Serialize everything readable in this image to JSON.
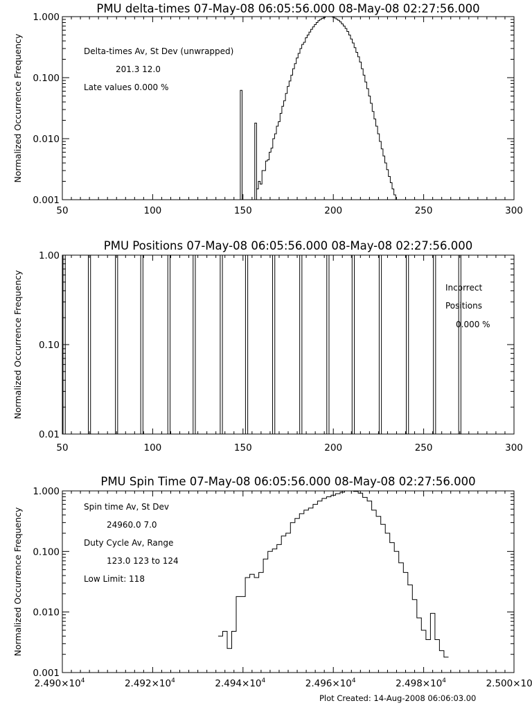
{
  "footer": "Plot Created: 14-Aug-2008 06:06:03.00",
  "chart_data": [
    {
      "type": "line",
      "step": true,
      "title": "PMU delta-times 07-May-08 06:05:56.000 08-May-08 02:27:56.000",
      "ylabel": "Normalized Occurrence Frequency",
      "xlabel": "",
      "ylog": true,
      "xlim": [
        50,
        300
      ],
      "ylim": [
        0.001,
        1.0
      ],
      "xticks": [
        "50",
        "100",
        "150",
        "200",
        "250",
        "300"
      ],
      "yticks": [
        "0.001",
        "0.010",
        "0.100",
        "1.000"
      ],
      "annotations": [
        "Delta-times Av, St Dev (unwrapped)",
        "201.3    12.0",
        "Late values    0.000 %"
      ],
      "spikes": [
        {
          "x": 149,
          "y": 0.062
        },
        {
          "x": 157,
          "y": 0.018
        }
      ],
      "x": [
        158,
        159,
        160,
        161,
        162,
        163,
        164,
        165,
        166,
        167,
        168,
        169,
        170,
        171,
        172,
        173,
        174,
        175,
        176,
        177,
        178,
        179,
        180,
        181,
        182,
        183,
        184,
        185,
        186,
        187,
        188,
        189,
        190,
        191,
        192,
        193,
        194,
        195,
        196,
        197,
        198,
        199,
        200,
        201,
        202,
        203,
        204,
        205,
        206,
        207,
        208,
        209,
        210,
        211,
        212,
        213,
        214,
        215,
        216,
        217,
        218,
        219,
        220,
        221,
        222,
        223,
        224,
        225,
        226,
        227,
        228,
        229,
        230,
        231,
        232,
        233,
        234,
        235,
        236,
        237,
        238,
        239
      ],
      "y": [
        0.0015,
        0.002,
        0.0018,
        0.003,
        0.003,
        0.0043,
        0.0045,
        0.006,
        0.007,
        0.01,
        0.012,
        0.016,
        0.019,
        0.026,
        0.034,
        0.042,
        0.055,
        0.072,
        0.088,
        0.11,
        0.14,
        0.17,
        0.21,
        0.25,
        0.3,
        0.35,
        0.38,
        0.45,
        0.5,
        0.56,
        0.62,
        0.68,
        0.74,
        0.8,
        0.86,
        0.9,
        0.94,
        0.97,
        1.0,
        1.0,
        1.0,
        1.0,
        0.98,
        0.95,
        0.91,
        0.87,
        0.82,
        0.76,
        0.7,
        0.64,
        0.57,
        0.5,
        0.43,
        0.37,
        0.31,
        0.26,
        0.22,
        0.18,
        0.14,
        0.11,
        0.085,
        0.066,
        0.05,
        0.038,
        0.028,
        0.021,
        0.016,
        0.012,
        0.009,
        0.0068,
        0.0052,
        0.004,
        0.0031,
        0.0024,
        0.0019,
        0.0015,
        0.0012,
        0.001,
        0.001,
        0.001,
        0.001,
        0.001
      ]
    },
    {
      "type": "bar",
      "title": "PMU Positions 07-May-08 06:05:56.000 08-May-08 02:27:56.000",
      "ylabel": "Normalized Occurrence Frequency",
      "xlabel": "",
      "ylog": true,
      "xlim": [
        50,
        300
      ],
      "ylim": [
        0.01,
        1.0
      ],
      "xticks": [
        "50",
        "100",
        "150",
        "200",
        "250",
        "300"
      ],
      "yticks": [
        "0.01",
        "0.10",
        "1.00"
      ],
      "annotations": [
        "Incorrect",
        "Positions",
        "0.000 %"
      ],
      "x": [
        51,
        65,
        80,
        94,
        109,
        123,
        138,
        152,
        167,
        182,
        197,
        211,
        226,
        241,
        256,
        270
      ],
      "values": [
        1.0,
        1.0,
        1.0,
        1.0,
        1.0,
        1.0,
        1.0,
        1.0,
        1.0,
        1.0,
        1.0,
        1.0,
        1.0,
        1.0,
        1.0,
        1.0
      ]
    },
    {
      "type": "line",
      "step": true,
      "title": "PMU Spin Time 07-May-08 06:05:56.000 08-May-08 02:27:56.000",
      "ylabel": "Normalized Occurrence Frequency",
      "xlabel": "",
      "ylog": true,
      "xlim": [
        24900,
        25000
      ],
      "ylim": [
        0.001,
        1.0
      ],
      "xticks": [
        "2.490×10",
        "2.492×10",
        "2.494×10",
        "2.496×10",
        "2.498×10",
        "2.500×10"
      ],
      "xtick_exponent": "4",
      "yticks": [
        "0.001",
        "0.010",
        "0.100",
        "1.000"
      ],
      "annotations": [
        "Spin time Av, St Dev",
        "24960.0        7.0",
        "Duty Cycle Av, Range",
        "123.0  123 to 124",
        "Low Limit: 118"
      ],
      "x": [
        24935,
        24936,
        24937,
        24938,
        24939,
        24940,
        24941,
        24942,
        24943,
        24944,
        24945,
        24946,
        24947,
        24948,
        24949,
        24950,
        24951,
        24952,
        24953,
        24954,
        24955,
        24956,
        24957,
        24958,
        24959,
        24960,
        24961,
        24962,
        24963,
        24964,
        24965,
        24966,
        24967,
        24968,
        24969,
        24970,
        24971,
        24972,
        24973,
        24974,
        24975,
        24976,
        24977,
        24978,
        24979,
        24980,
        24981,
        24982,
        24983,
        24984,
        24985
      ],
      "y": [
        0.004,
        0.0048,
        0.0025,
        0.0048,
        0.018,
        0.018,
        0.037,
        0.042,
        0.037,
        0.045,
        0.075,
        0.1,
        0.11,
        0.13,
        0.18,
        0.2,
        0.3,
        0.35,
        0.42,
        0.48,
        0.52,
        0.6,
        0.68,
        0.75,
        0.8,
        0.85,
        0.9,
        0.95,
        1.0,
        1.0,
        0.98,
        0.92,
        0.78,
        0.68,
        0.48,
        0.38,
        0.28,
        0.2,
        0.14,
        0.1,
        0.065,
        0.045,
        0.028,
        0.016,
        0.008,
        0.005,
        0.0035,
        0.0095,
        0.0035,
        0.0023,
        0.0018
      ]
    }
  ]
}
